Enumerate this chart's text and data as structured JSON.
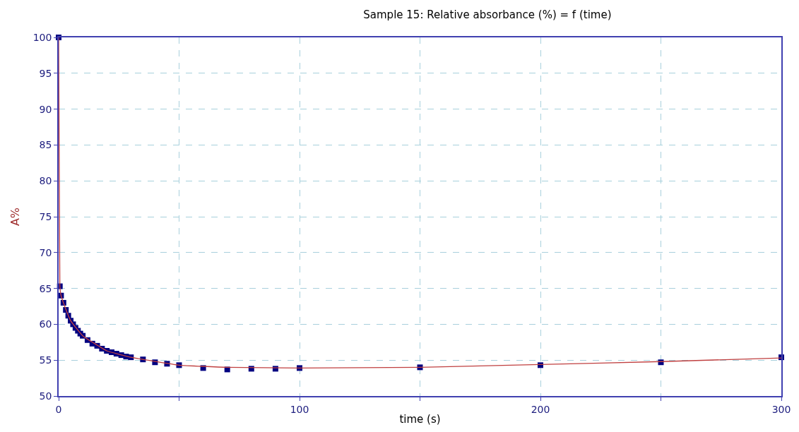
{
  "chart_data": {
    "type": "scatter",
    "title": "Sample 15: Relative absorbance (%) = f (time)",
    "xlabel": "time (s)",
    "ylabel": "A%",
    "xlim": [
      0,
      300
    ],
    "ylim": [
      50,
      100
    ],
    "xticks": [
      0,
      {
        "value": 50,
        "label": null
      },
      100,
      {
        "value": 150,
        "label": null
      },
      200,
      {
        "value": 250,
        "label": null
      },
      300
    ],
    "yticks": [
      50,
      55,
      60,
      65,
      70,
      75,
      80,
      85,
      90,
      95,
      100
    ],
    "grid": true,
    "marker": "square",
    "series": [
      {
        "color": "#000080",
        "x": [
          0,
          0.5,
          1,
          2,
          3,
          4,
          5,
          6,
          7,
          8,
          9,
          10,
          12,
          14,
          16,
          18,
          20,
          22,
          24,
          26,
          28,
          30,
          35,
          40,
          45,
          50,
          60,
          70,
          80,
          90,
          100,
          150,
          200,
          250,
          300
        ],
        "values": [
          100,
          65.3,
          64.0,
          63.0,
          62.0,
          61.2,
          60.5,
          60.0,
          59.5,
          59.1,
          58.7,
          58.4,
          57.8,
          57.3,
          57.0,
          56.6,
          56.3,
          56.1,
          55.9,
          55.7,
          55.5,
          55.4,
          55.1,
          54.7,
          54.5,
          54.3,
          53.9,
          53.7,
          53.8,
          53.8,
          53.9,
          54.0,
          54.3,
          54.7,
          55.4
        ]
      },
      {
        "type": "line",
        "color": "#c04040",
        "marker": "none",
        "x": [
          0,
          0.5,
          1,
          2,
          5,
          10,
          20,
          30,
          50,
          70,
          100,
          150,
          200,
          250,
          300
        ],
        "values": [
          100,
          65.3,
          64.0,
          63.0,
          60.5,
          58.4,
          56.3,
          55.4,
          54.3,
          54.0,
          53.9,
          54.0,
          54.4,
          54.8,
          55.3
        ]
      }
    ]
  }
}
